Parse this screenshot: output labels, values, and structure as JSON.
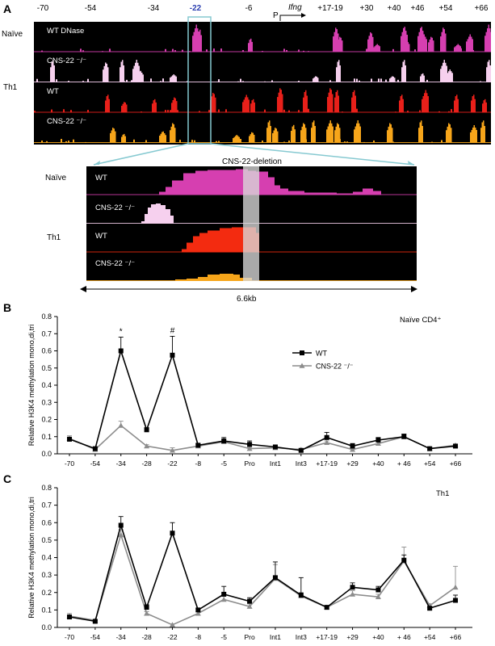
{
  "panels": {
    "a": "A",
    "b": "B",
    "c": "C"
  },
  "genome": {
    "positions": [
      {
        "label": "-70",
        "x": 0
      },
      {
        "label": "-54",
        "x": 0
      },
      {
        "label": "-34",
        "x": 0
      },
      {
        "label": "-22",
        "x": 0
      },
      {
        "label": "-6",
        "x": 0
      },
      {
        "label": "+17-19",
        "x": 0
      },
      {
        "label": "+30",
        "x": 0
      },
      {
        "label": "+40",
        "x": 0
      },
      {
        "label": "+46",
        "x": 0
      },
      {
        "label": "+54",
        "x": 0
      },
      {
        "label": "+66",
        "x": 0
      }
    ],
    "promoter": "P",
    "gene": "Ifng",
    "row_labels": {
      "naive": "Naïve",
      "th1": "Th1"
    },
    "tracks": [
      {
        "label": "WT DNase",
        "color": "#d63fb0"
      },
      {
        "label": "CNS-22 ⁻/⁻",
        "color": "#f6d0ee"
      },
      {
        "label": "WT",
        "color": "#e8201a"
      },
      {
        "label": "CNS-22 ⁻/⁻",
        "color": "#f6a51a"
      }
    ],
    "zoom_title": "CNS-22-deletion",
    "zoom_tracks": [
      {
        "label": "WT",
        "color": "#d63fb0"
      },
      {
        "label": "CNS-22 ⁻/⁻",
        "color": "#f6d0ee"
      },
      {
        "label": "WT",
        "color": "#f32b10"
      },
      {
        "label": "CNS-22 ⁻/⁻",
        "color": "#f6a51a"
      }
    ],
    "scale": "6.6kb"
  },
  "chart_data": [
    {
      "type": "line",
      "panel": "B",
      "title": "Naïve CD4⁺",
      "ylabel": "Relative H3K4 methylation mono,di,tri",
      "ylim": [
        0,
        0.8
      ],
      "yticks": [
        "0.0",
        "0.1",
        "0.2",
        "0.3",
        "0.4",
        "0.5",
        "0.6",
        "0.7",
        "0.8"
      ],
      "categories": [
        "-70",
        "-54",
        "-34",
        "-28",
        "-22",
        "-8",
        "-5",
        "Pro",
        "Int1",
        "Int3",
        "+17-19",
        "+29",
        "+40",
        "+ 46",
        "+54",
        "+66"
      ],
      "series": [
        {
          "name": "WT",
          "color": "#000000",
          "marker": "square",
          "values": [
            0.085,
            0.03,
            0.6,
            0.14,
            0.575,
            0.05,
            0.075,
            0.055,
            0.04,
            0.02,
            0.095,
            0.045,
            0.08,
            0.1,
            0.03,
            0.045
          ],
          "errors": [
            0.012,
            0.006,
            0.08,
            0.012,
            0.11,
            0.008,
            0.02,
            0.02,
            0.006,
            0.004,
            0.03,
            0.015,
            0.015,
            0.015,
            0.006,
            0.008
          ]
        },
        {
          "name": "CNS-22 ⁻/⁻",
          "color": "#8c8c8c",
          "marker": "triangle",
          "values": [
            0.09,
            0.025,
            0.165,
            0.045,
            0.02,
            0.045,
            0.07,
            0.03,
            0.035,
            0.025,
            0.065,
            0.025,
            0.06,
            0.1,
            0.03,
            0.05
          ],
          "errors": [
            0.015,
            0.005,
            0.025,
            0.008,
            0.015,
            0.008,
            0.012,
            0.008,
            0.006,
            0.005,
            0.01,
            0.008,
            0.01,
            0.015,
            0.006,
            0.006
          ]
        }
      ],
      "legend": "right",
      "annotations": [
        {
          "text": "*",
          "category": "-34"
        },
        {
          "text": "#",
          "category": "-22"
        }
      ]
    },
    {
      "type": "line",
      "panel": "C",
      "title": "Th1",
      "ylabel": "Relative H3K4 methylation mono,di,tri",
      "ylim": [
        0,
        0.8
      ],
      "yticks": [
        "0.0",
        "0.1",
        "0.2",
        "0.3",
        "0.4",
        "0.5",
        "0.6",
        "0.7",
        "0.8"
      ],
      "categories": [
        "-70",
        "-54",
        "-34",
        "-28",
        "-22",
        "-8",
        "-5",
        "Pro",
        "Int1",
        "Int3",
        "+17-19",
        "+29",
        "+40",
        "+ 46",
        "+54",
        "+66"
      ],
      "series": [
        {
          "name": "WT",
          "color": "#000000",
          "marker": "square",
          "values": [
            0.06,
            0.035,
            0.585,
            0.115,
            0.54,
            0.1,
            0.19,
            0.15,
            0.285,
            0.185,
            0.115,
            0.23,
            0.215,
            0.385,
            0.11,
            0.155
          ],
          "errors": [
            0.01,
            0.005,
            0.05,
            0.015,
            0.06,
            0.01,
            0.045,
            0.02,
            0.09,
            0.1,
            0.01,
            0.025,
            0.02,
            0.03,
            0.01,
            0.03
          ]
        },
        {
          "name": "CNS-22 ⁻/⁻",
          "color": "#8c8c8c",
          "marker": "triangle",
          "values": [
            0.065,
            0.04,
            0.53,
            0.08,
            0.015,
            0.08,
            0.16,
            0.12,
            0.28,
            0.18,
            0.115,
            0.19,
            0.175,
            0.38,
            0.125,
            0.23
          ],
          "errors": [
            0.015,
            0.005,
            0.03,
            0.01,
            0.005,
            0.01,
            0.03,
            0.015,
            0.08,
            0.02,
            0.01,
            0.02,
            0.015,
            0.08,
            0.01,
            0.12
          ]
        }
      ]
    }
  ]
}
